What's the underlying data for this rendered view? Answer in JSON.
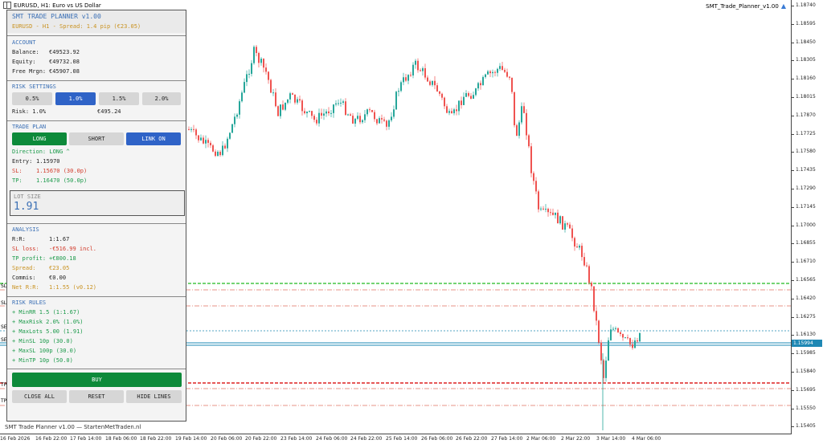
{
  "window": {
    "symbol_title": "EURUSD, H1:  Euro vs US Dollar",
    "ea_label": "SMT_Trade_Planner_v1.00",
    "footer": "SMT Trade Planner v1.00 — StartenMetTraden.nl"
  },
  "price_axis": [
    "1.18740",
    "1.18595",
    "1.18450",
    "1.18305",
    "1.18160",
    "1.18015",
    "1.17870",
    "1.17725",
    "1.17580",
    "1.17435",
    "1.17290",
    "1.17145",
    "1.17000",
    "1.16855",
    "1.16710",
    "1.16565",
    "1.16420",
    "1.16275",
    "1.16130",
    "1.15985",
    "1.15840",
    "1.15695",
    "1.15550",
    "1.15405"
  ],
  "current_price": "1.15994",
  "time_axis": [
    "16 Feb 2026",
    "16 Feb 22:00",
    "17 Feb 14:00",
    "18 Feb 06:00",
    "18 Feb 22:00",
    "19 Feb 14:00",
    "20 Feb 06:00",
    "20 Feb 22:00",
    "23 Feb 14:00",
    "24 Feb 06:00",
    "24 Feb 22:00",
    "25 Feb 14:00",
    "26 Feb 06:00",
    "26 Feb 22:00",
    "27 Feb 14:00",
    "2 Mar 06:00",
    "2 Mar 22:00",
    "3 Mar 14:00",
    "4 Mar 06:00"
  ],
  "left_labels": [
    "SL",
    "SL",
    "SE",
    "SE",
    "TP",
    "TP"
  ],
  "panel": {
    "title": "SMT TRADE PLANNER v1.00",
    "subtitle": "EURUSD - H1 - Spread: 1.4 pip (€23.05)",
    "account": {
      "header": "ACCOUNT",
      "balance_label": "Balance:",
      "balance": "€49523.92",
      "equity_label": "Equity:",
      "equity": "€49732.08",
      "free_label": "Free Mrgn:",
      "free": "€45907.08"
    },
    "risk": {
      "header": "RISK SETTINGS",
      "buttons": [
        "0.5%",
        "1.0%",
        "1.5%",
        "2.0%"
      ],
      "risk_label": "Risk: 1.0%",
      "risk_amount": "€495.24"
    },
    "trade_plan": {
      "header": "TRADE PLAN",
      "long": "LONG",
      "short": "SHORT",
      "link": "LINK ON",
      "direction": "Direction: LONG  ^",
      "entry_label": "Entry:",
      "entry": "1.15970",
      "sl_label": "SL:",
      "sl": "1.15670 (30.0p)",
      "tp_label": "TP:",
      "tp": "1.16470 (50.0p)"
    },
    "lot": {
      "header": "LOT SIZE",
      "value": "1.91"
    },
    "analysis": {
      "header": "ANALYSIS",
      "rr_label": "R:R:",
      "rr": "1:1.67",
      "sl_loss_label": "SL loss:",
      "sl_loss": "-€516.99 incl.",
      "tp_profit_label": "TP profit:",
      "tp_profit": "+€800.18",
      "spread_label": "Spread:",
      "spread": "€23.05",
      "commis_label": "Commis:",
      "commis": "€0.00",
      "net_label": "Net R:R:",
      "net": "1:1.55 (v0.12)"
    },
    "rules": {
      "header": "RISK RULES",
      "items": [
        "+ MinRR 1.5 (1:1.67)",
        "+ MaxRisk 2.0% (1.0%)",
        "+ MaxLots 5.00 (1.91)",
        "+ MinSL 10p (30.0)",
        "+ MaxSL 100p (30.0)",
        "+ MinTP 10p (50.0)"
      ]
    },
    "buy": "BUY",
    "close_all": "CLOSE ALL",
    "reset": "RESET",
    "hide_lines": "HIDE LINES"
  },
  "colors": {
    "bull": "#26a69a",
    "bear": "#ef5350",
    "tp_line": "#22bb22",
    "sl_line": "#dd2222",
    "entry_line": "#1e88b4",
    "accent_blue": "#2f63c7",
    "buy_green": "#0d8a3a"
  }
}
